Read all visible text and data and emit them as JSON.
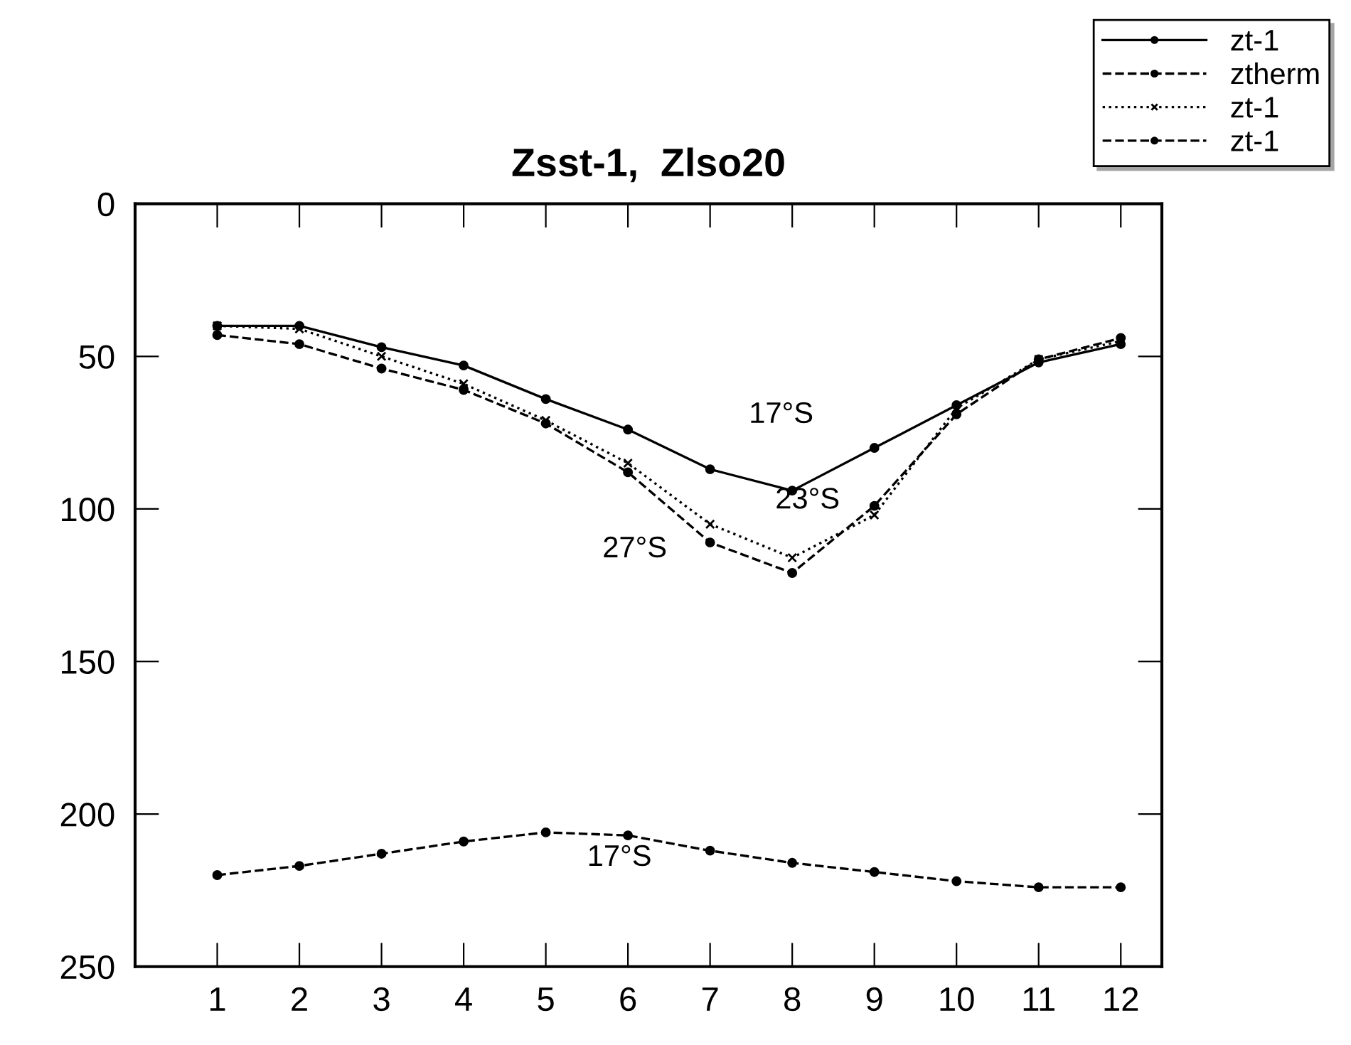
{
  "chart_data": {
    "type": "line",
    "title": "Zsst-1,  Zlso20",
    "x": [
      1,
      2,
      3,
      4,
      5,
      6,
      7,
      8,
      9,
      10,
      11,
      12
    ],
    "xlim": [
      0,
      12.5
    ],
    "xticks": [
      1,
      2,
      3,
      4,
      5,
      6,
      7,
      8,
      9,
      10,
      11,
      12
    ],
    "ylim": [
      250,
      0
    ],
    "yticks": [
      0,
      50,
      100,
      150,
      200,
      250
    ],
    "grid": false,
    "legend": "top right",
    "series": [
      {
        "name": "zt-1",
        "color": "#000000",
        "line_style": "solid",
        "marker": "circle",
        "values": [
          40,
          40,
          47,
          53,
          64,
          74,
          87,
          94,
          80,
          66,
          52,
          46
        ]
      },
      {
        "name": "ztherm",
        "color": "#000000",
        "line_style": "dashed",
        "marker": "circle",
        "values": [
          220,
          217,
          213,
          209,
          206,
          207,
          212,
          216,
          219,
          222,
          224,
          224
        ]
      },
      {
        "name": "zt-1",
        "color": "#000000",
        "line_style": "dotted",
        "marker": "cross",
        "values": [
          40,
          41,
          50,
          59,
          71,
          85,
          105,
          116,
          102,
          67,
          51,
          45
        ]
      },
      {
        "name": "zt-1",
        "color": "#000000",
        "line_style": "dashed",
        "marker": "circle",
        "values": [
          43,
          46,
          54,
          61,
          72,
          88,
          111,
          121,
          99,
          69,
          51,
          44
        ]
      }
    ],
    "annotations": [
      {
        "text": "17°S",
        "x": 7,
        "y": 87
      },
      {
        "text": "23°S",
        "x": 9,
        "y": 102
      },
      {
        "text": "27°S",
        "x": 7,
        "y": 111
      },
      {
        "text": "17°S",
        "x": 6,
        "y": 207
      }
    ]
  }
}
